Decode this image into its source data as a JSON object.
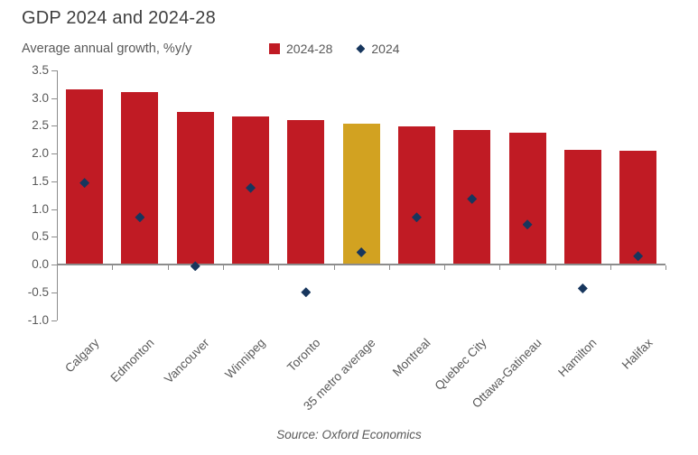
{
  "header": {
    "title": "GDP 2024 and 2024-28",
    "subtitle": "Average annual growth, %y/y"
  },
  "legend": {
    "items": [
      {
        "label": "2024-28",
        "marker": "square-icon"
      },
      {
        "label": "2024",
        "marker": "diamond-icon"
      }
    ]
  },
  "footer": {
    "source": "Source: Oxford Economics"
  },
  "colors": {
    "bar_red": "#c01b24",
    "highlight_gold": "#d2a221",
    "marker_navy": "#17365d",
    "axis_gray": "#8c8c8c",
    "text_gray": "#595959",
    "title_gray": "#3f3f3f"
  },
  "chart_data": {
    "type": "bar",
    "title": "GDP 2024 and 2024-28",
    "subtitle": "Average annual growth, %y/y",
    "categories": [
      "Calgary",
      "Edmonton",
      "Vancouver",
      "Winnipeg",
      "Toronto",
      "35 metro average",
      "Montreal",
      "Quebec City",
      "Ottawa-Gatineau",
      "Hamilton",
      "Halifax"
    ],
    "series": [
      {
        "name": "2024-28",
        "type": "bar",
        "color": "#c01b24",
        "values": [
          3.15,
          3.1,
          2.74,
          2.67,
          2.6,
          2.53,
          2.48,
          2.43,
          2.37,
          2.06,
          2.05
        ]
      },
      {
        "name": "2024",
        "type": "scatter",
        "marker": "diamond",
        "color": "#17365d",
        "values": [
          1.47,
          0.85,
          -0.03,
          1.38,
          -0.5,
          0.22,
          0.85,
          1.18,
          0.72,
          -0.43,
          0.15
        ]
      }
    ],
    "highlight": {
      "category": "35 metro average",
      "index": 5,
      "color": "#d2a221"
    },
    "ylim": [
      -1.0,
      3.5
    ],
    "ytick_step": 0.5,
    "grid": false,
    "legend_position": "top",
    "source": "Source: Oxford Economics"
  }
}
